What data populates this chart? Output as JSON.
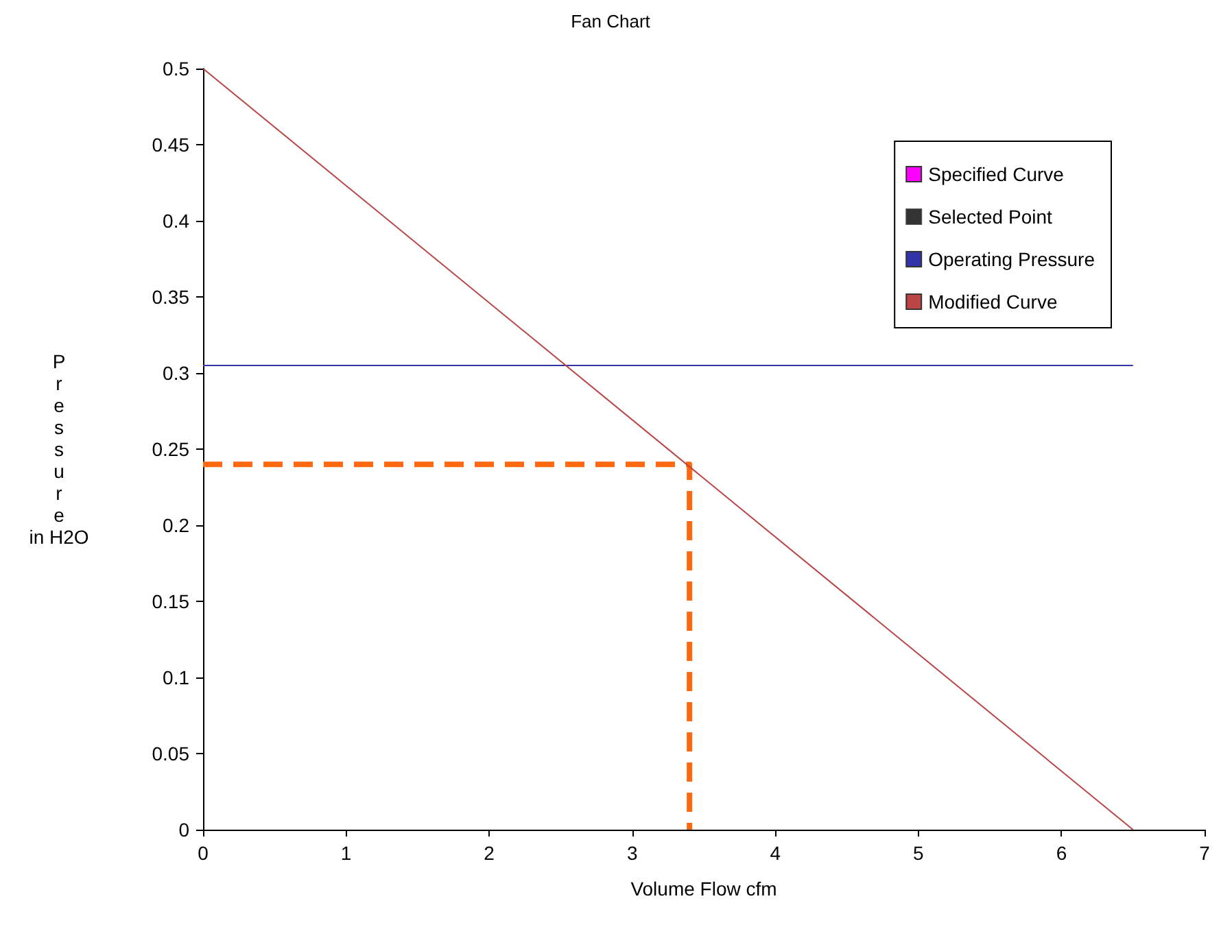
{
  "chart_data": {
    "type": "line",
    "title": "Fan Chart",
    "xlabel": "Volume Flow cfm",
    "ylabel": "Pressure in H2O",
    "xlim": [
      0,
      7
    ],
    "xticks": [
      0,
      1,
      2,
      3,
      4,
      5,
      6,
      7
    ],
    "ylim": [
      0,
      0.5
    ],
    "yticks": [
      0,
      0.05,
      0.1,
      0.15,
      0.2,
      0.25,
      0.3,
      0.35,
      0.4,
      0.45,
      0.5
    ],
    "grid": false,
    "legend": "top right",
    "marker": "none",
    "series": [
      {
        "name": "Specified Curve",
        "color": "#ff00ff"
      },
      {
        "name": "Selected Point",
        "color": "#000000",
        "type": "scatter"
      },
      {
        "name": "Operating Pressure",
        "color": "#3333aa",
        "x": [
          0,
          6.5
        ],
        "values": [
          0.305,
          0.305
        ]
      },
      {
        "name": "Modified Curve",
        "color": "#bb4444",
        "x": [
          0,
          6.5
        ],
        "values": [
          0.5,
          0
        ]
      },
      {
        "color": "#ff6a10",
        "line_style": "dashed",
        "x": [
          0,
          3.4,
          3.4
        ],
        "values": [
          0.24,
          0.24,
          0
        ]
      }
    ]
  }
}
